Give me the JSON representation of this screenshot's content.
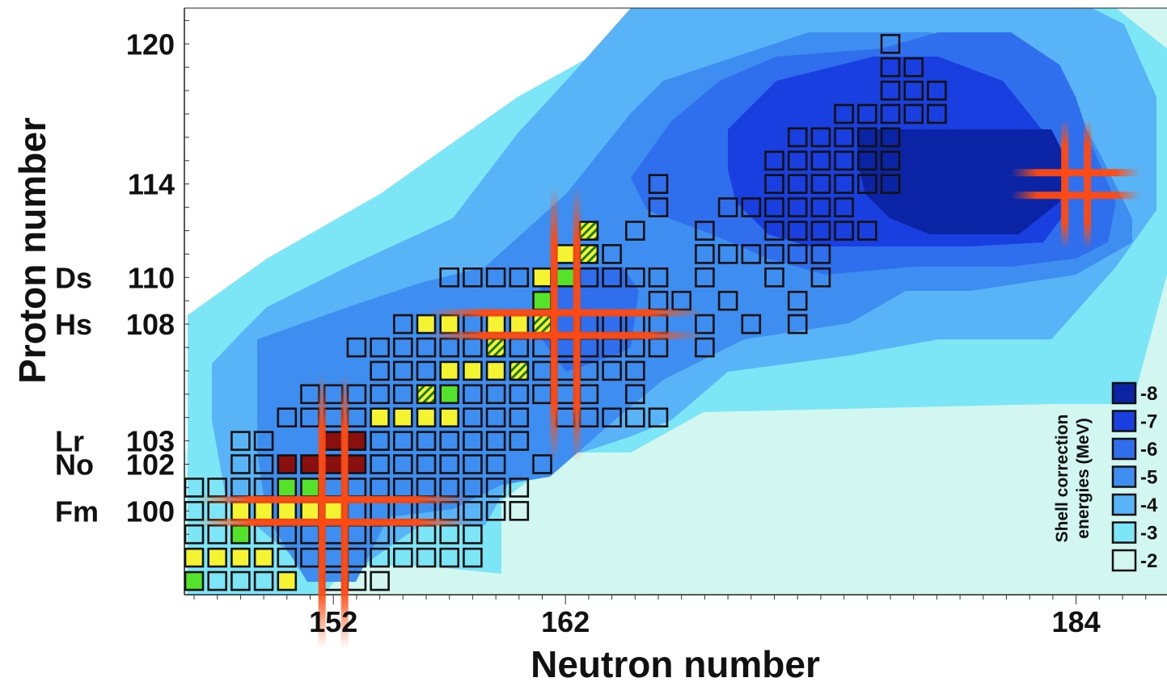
{
  "chart_data": {
    "type": "heatmap",
    "title": "",
    "xlabel": "Neutron number",
    "ylabel": "Proton number",
    "xlim": [
      146,
      188
    ],
    "ylim": [
      96,
      121
    ],
    "x_ticks": [
      "152",
      "162",
      "184"
    ],
    "x_tick_values": [
      152,
      162,
      184
    ],
    "y_ticks": [
      "100",
      "102",
      "103",
      "108",
      "110",
      "114",
      "120"
    ],
    "y_tick_values": [
      100,
      102,
      103,
      108,
      110,
      114,
      120
    ],
    "element_labels": [
      {
        "symbol": "Fm",
        "z": 100
      },
      {
        "symbol": "No",
        "z": 102
      },
      {
        "symbol": "Lr",
        "z": 103
      },
      {
        "symbol": "Hs",
        "z": 108
      },
      {
        "symbol": "Ds",
        "z": 110
      }
    ],
    "legend": {
      "title_lines": [
        "Shell correction",
        "energies (MeV)"
      ],
      "position": "bottom-right",
      "levels": [
        {
          "label": "-8",
          "value": -8,
          "color": "#0b24a6"
        },
        {
          "label": "-7",
          "value": -7,
          "color": "#1a3fe0"
        },
        {
          "label": "-6",
          "value": -6,
          "color": "#2f6fee"
        },
        {
          "label": "-5",
          "value": -5,
          "color": "#3d8ef0"
        },
        {
          "label": "-4",
          "value": -4,
          "color": "#58b4f6"
        },
        {
          "label": "-3",
          "value": -3,
          "color": "#7ce6f6"
        },
        {
          "label": "-2",
          "value": -2,
          "color": "#d2f6f0"
        }
      ]
    },
    "shell_gaps": [
      {
        "n": 152,
        "z": 100
      },
      {
        "n": 162,
        "z": 108
      },
      {
        "n": 184,
        "z": 114
      }
    ],
    "status_colors": {
      "plain": "none",
      "yellow": "#f4f433",
      "green": "#55e22a",
      "darkred": "#8a0f0f",
      "hatched": "#f4f433"
    },
    "nuclei": [
      {
        "z": 97,
        "ns": [
          146
        ],
        "status": "green"
      },
      {
        "z": 97,
        "ns": [
          147,
          148,
          149
        ],
        "status": "plain"
      },
      {
        "z": 97,
        "ns": [
          150
        ],
        "status": "yellow"
      },
      {
        "z": 97,
        "ns": [
          152,
          153,
          154
        ],
        "status": "plain"
      },
      {
        "z": 98,
        "ns": [
          146,
          147,
          148,
          149
        ],
        "status": "yellow"
      },
      {
        "z": 98,
        "ns": [
          150,
          151,
          152,
          153,
          154,
          155,
          156,
          157,
          158
        ],
        "status": "plain"
      },
      {
        "z": 99,
        "ns": [
          146,
          147
        ],
        "status": "plain"
      },
      {
        "z": 99,
        "ns": [
          148
        ],
        "status": "green"
      },
      {
        "z": 99,
        "ns": [
          149,
          150,
          151,
          152,
          153,
          154,
          155,
          156,
          157,
          158
        ],
        "status": "plain"
      },
      {
        "z": 100,
        "ns": [
          146,
          147
        ],
        "status": "plain"
      },
      {
        "z": 100,
        "ns": [
          148,
          149,
          150,
          151,
          152
        ],
        "status": "yellow"
      },
      {
        "z": 100,
        "ns": [
          153,
          154,
          155,
          156,
          157,
          158,
          159,
          160
        ],
        "status": "plain"
      },
      {
        "z": 101,
        "ns": [
          146,
          147,
          148,
          149
        ],
        "status": "plain"
      },
      {
        "z": 101,
        "ns": [
          150,
          151
        ],
        "status": "green"
      },
      {
        "z": 101,
        "ns": [
          152,
          153,
          154,
          155,
          156,
          157,
          158,
          159,
          160
        ],
        "status": "plain"
      },
      {
        "z": 102,
        "ns": [
          148,
          149
        ],
        "status": "plain"
      },
      {
        "z": 102,
        "ns": [
          150,
          151,
          152,
          153
        ],
        "status": "darkred"
      },
      {
        "z": 102,
        "ns": [
          154,
          155,
          156,
          157,
          158,
          159
        ],
        "status": "plain"
      },
      {
        "z": 102,
        "ns": [
          161
        ],
        "status": "plain"
      },
      {
        "z": 103,
        "ns": [
          148,
          149
        ],
        "status": "plain"
      },
      {
        "z": 103,
        "ns": [
          152,
          153
        ],
        "status": "darkred"
      },
      {
        "z": 103,
        "ns": [
          154,
          155,
          156,
          157,
          158,
          159,
          160
        ],
        "status": "plain"
      },
      {
        "z": 104,
        "ns": [
          150,
          151,
          152,
          153
        ],
        "status": "plain"
      },
      {
        "z": 104,
        "ns": [
          154,
          155,
          156,
          157
        ],
        "status": "yellow"
      },
      {
        "z": 104,
        "ns": [
          158,
          159,
          160
        ],
        "status": "plain"
      },
      {
        "z": 104,
        "ns": [
          162,
          163,
          164,
          165,
          166
        ],
        "status": "plain"
      },
      {
        "z": 105,
        "ns": [
          151,
          152,
          153,
          154,
          155
        ],
        "status": "plain"
      },
      {
        "z": 105,
        "ns": [
          156
        ],
        "status": "hatched"
      },
      {
        "z": 105,
        "ns": [
          157
        ],
        "status": "green"
      },
      {
        "z": 105,
        "ns": [
          158,
          159,
          160,
          161
        ],
        "status": "plain"
      },
      {
        "z": 105,
        "ns": [
          162,
          163,
          165
        ],
        "status": "plain"
      },
      {
        "z": 106,
        "ns": [
          154,
          155,
          156
        ],
        "status": "plain"
      },
      {
        "z": 106,
        "ns": [
          157
        ],
        "status": "yellow"
      },
      {
        "z": 106,
        "ns": [
          158
        ],
        "status": "yellow"
      },
      {
        "z": 106,
        "ns": [
          159
        ],
        "status": "yellow"
      },
      {
        "z": 106,
        "ns": [
          160
        ],
        "status": "hatched"
      },
      {
        "z": 106,
        "ns": [
          161,
          162,
          163,
          164,
          165
        ],
        "status": "plain"
      },
      {
        "z": 107,
        "ns": [
          153,
          154,
          155,
          156,
          157,
          158
        ],
        "status": "plain"
      },
      {
        "z": 107,
        "ns": [
          159
        ],
        "status": "hatched"
      },
      {
        "z": 107,
        "ns": [
          160,
          161,
          162,
          163,
          164,
          165,
          166
        ],
        "status": "plain"
      },
      {
        "z": 107,
        "ns": [
          168
        ],
        "status": "plain"
      },
      {
        "z": 108,
        "ns": [
          155
        ],
        "status": "plain"
      },
      {
        "z": 108,
        "ns": [
          156,
          157
        ],
        "status": "yellow"
      },
      {
        "z": 108,
        "ns": [
          158
        ],
        "status": "plain"
      },
      {
        "z": 108,
        "ns": [
          159
        ],
        "status": "yellow"
      },
      {
        "z": 108,
        "ns": [
          160
        ],
        "status": "yellow"
      },
      {
        "z": 108,
        "ns": [
          161
        ],
        "status": "hatched"
      },
      {
        "z": 108,
        "ns": [
          162,
          163,
          164,
          165,
          166
        ],
        "status": "plain"
      },
      {
        "z": 108,
        "ns": [
          168,
          170,
          172
        ],
        "status": "plain"
      },
      {
        "z": 109,
        "ns": [
          161
        ],
        "status": "green"
      },
      {
        "z": 109,
        "ns": [
          166,
          167
        ],
        "status": "plain"
      },
      {
        "z": 109,
        "ns": [
          169,
          172
        ],
        "status": "plain"
      },
      {
        "z": 110,
        "ns": [
          157,
          158,
          159,
          160
        ],
        "status": "plain"
      },
      {
        "z": 110,
        "ns": [
          161
        ],
        "status": "yellow"
      },
      {
        "z": 110,
        "ns": [
          162
        ],
        "status": "green"
      },
      {
        "z": 110,
        "ns": [
          163,
          164,
          165,
          166
        ],
        "status": "plain"
      },
      {
        "z": 110,
        "ns": [
          168,
          171,
          173
        ],
        "status": "plain"
      },
      {
        "z": 111,
        "ns": [
          162
        ],
        "status": "yellow"
      },
      {
        "z": 111,
        "ns": [
          163
        ],
        "status": "hatched"
      },
      {
        "z": 111,
        "ns": [
          164
        ],
        "status": "plain"
      },
      {
        "z": 111,
        "ns": [
          168,
          169,
          170,
          171,
          172,
          173
        ],
        "status": "plain"
      },
      {
        "z": 112,
        "ns": [
          163
        ],
        "status": "hatched"
      },
      {
        "z": 112,
        "ns": [
          165
        ],
        "status": "plain"
      },
      {
        "z": 112,
        "ns": [
          168,
          171,
          172,
          173,
          174,
          175
        ],
        "status": "plain"
      },
      {
        "z": 113,
        "ns": [
          166
        ],
        "status": "plain"
      },
      {
        "z": 113,
        "ns": [
          169,
          170,
          171,
          172,
          173,
          174
        ],
        "status": "plain"
      },
      {
        "z": 114,
        "ns": [
          166
        ],
        "status": "plain"
      },
      {
        "z": 114,
        "ns": [
          171,
          172,
          173,
          174,
          175,
          176
        ],
        "status": "plain"
      },
      {
        "z": 115,
        "ns": [
          171,
          172,
          173,
          174,
          175,
          176
        ],
        "status": "plain"
      },
      {
        "z": 116,
        "ns": [
          172,
          173,
          174,
          175,
          176
        ],
        "status": "plain"
      },
      {
        "z": 117,
        "ns": [
          174,
          175,
          176,
          177,
          178
        ],
        "status": "plain"
      },
      {
        "z": 118,
        "ns": [
          176,
          177,
          178
        ],
        "status": "plain"
      },
      {
        "z": 119,
        "ns": [
          176,
          177
        ],
        "status": "plain"
      },
      {
        "z": 120,
        "ns": [
          176
        ],
        "status": "plain"
      }
    ]
  }
}
